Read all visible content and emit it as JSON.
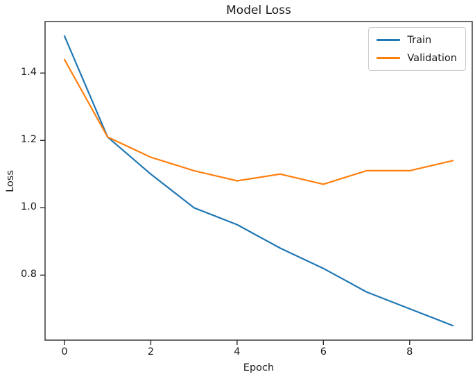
{
  "figure": {
    "title": "Model Loss",
    "xlabel": "Epoch",
    "ylabel": "Loss"
  },
  "legend": {
    "items": [
      {
        "label": "Train",
        "color": "#1f77b4"
      },
      {
        "label": "Validation",
        "color": "#ff7f0e"
      }
    ]
  },
  "chart_data": {
    "type": "line",
    "title": "Model Loss",
    "xlabel": "Epoch",
    "ylabel": "Loss",
    "x": [
      0,
      1,
      2,
      3,
      4,
      5,
      6,
      7,
      8,
      9
    ],
    "series": [
      {
        "name": "Train",
        "color": "#1f77b4",
        "values": [
          1.51,
          1.21,
          1.1,
          1.0,
          0.95,
          0.88,
          0.82,
          0.75,
          0.7,
          0.65
        ]
      },
      {
        "name": "Validation",
        "color": "#ff7f0e",
        "values": [
          1.44,
          1.21,
          1.15,
          1.11,
          1.08,
          1.1,
          1.07,
          1.11,
          1.11,
          1.14
        ]
      }
    ],
    "xlim": [
      -0.45,
      9.45
    ],
    "ylim": [
      0.607,
      1.553
    ],
    "x_ticks": [
      0,
      2,
      4,
      6,
      8
    ],
    "x_tick_labels": [
      "0",
      "2",
      "4",
      "6",
      "8"
    ],
    "y_ticks": [
      0.8,
      1.0,
      1.2,
      1.4
    ],
    "y_tick_labels": [
      "0.8",
      "1.0",
      "1.2",
      "1.4"
    ],
    "grid": false,
    "legend_position": "upper right"
  }
}
